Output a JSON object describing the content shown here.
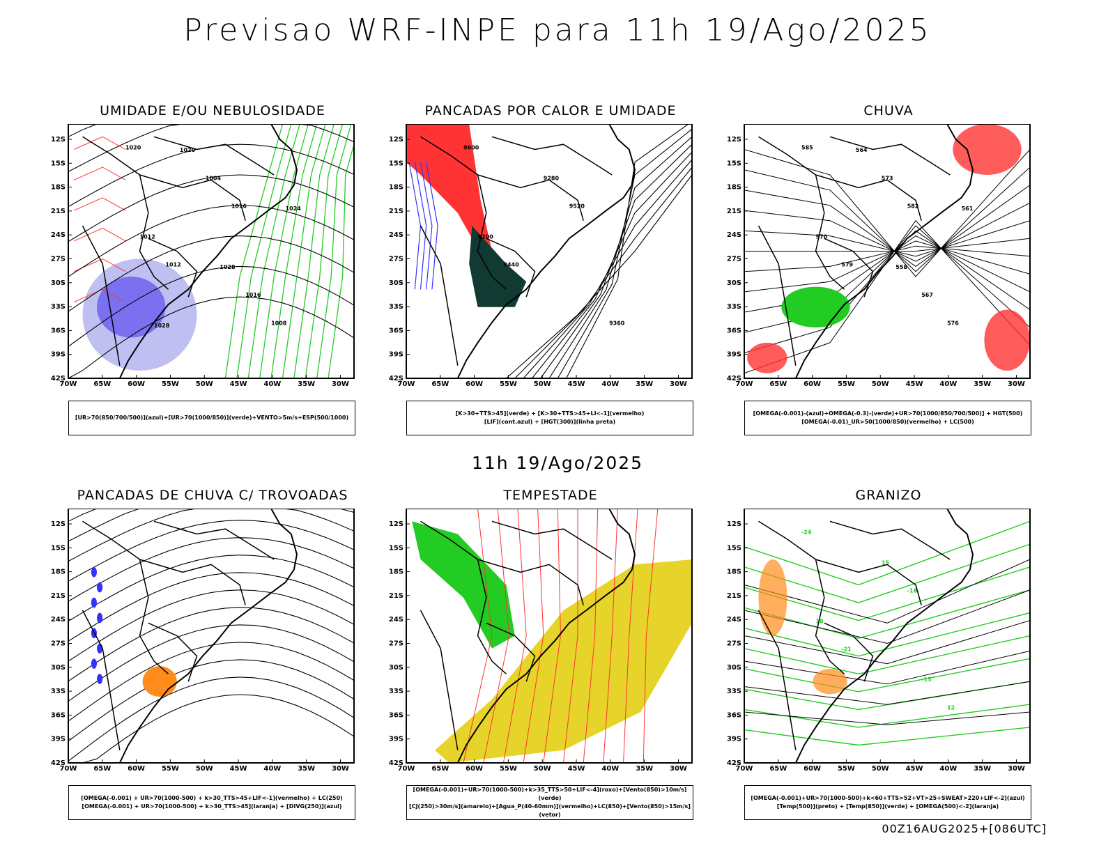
{
  "title": "Previsao WRF-INPE  para 11h 19/Ago/2025",
  "mid_label": "11h 19/Ago/2025",
  "footer": "00Z16AUG2025+[086UTC]",
  "axes": {
    "lat_ticks": [
      "12S",
      "15S",
      "18S",
      "21S",
      "24S",
      "27S",
      "30S",
      "33S",
      "36S",
      "39S",
      "42S"
    ],
    "lon_ticks": [
      "70W",
      "65W",
      "60W",
      "55W",
      "50W",
      "45W",
      "40W",
      "35W",
      "30W"
    ]
  },
  "colors": {
    "blue": "#3333ff",
    "green": "#22cc22",
    "red": "#ff3333",
    "orange": "#ff8c1a",
    "yellow": "#e6d42a",
    "darkgreen": "#113a33",
    "lightblue": "#b8b8f0",
    "violet": "#6a5ef0"
  },
  "panels": [
    {
      "title": "UMIDADE E/OU NEBULOSIDADE",
      "legend": [
        "[UR>70(850/700/500)](azul)+[UR>70(1000/850)](verde)+VENTO>5m/s+ESP(500/1000)"
      ],
      "contour_labels": [
        "1020",
        "1016",
        "1012",
        "1008",
        "1004",
        "1012",
        "1016",
        "1020",
        "1024",
        "1028",
        "1028"
      ]
    },
    {
      "title": "PANCADAS POR CALOR E UMIDADE",
      "legend": [
        "[K>30+TTS>45](verde) + [K>30+TTS>45+LI<-1](vermelho)",
        "[LIF](cont.azul) + [HGT(300)](linha preta)"
      ],
      "contour_labels": [
        "9600",
        "9520",
        "9440",
        "9360",
        "9280",
        "9200"
      ]
    },
    {
      "title": "CHUVA",
      "legend": [
        "[OMEGA(-0.001)-(azul)+OMEGA(-0.3)-(verde)+UR>70(1000/850/700/500)] + HGT(500)",
        "[OMEGA(-0.01)_UR>50(1000/850)(vermelho) + LC(500)"
      ],
      "contour_labels": [
        "585",
        "582",
        "579",
        "576",
        "573",
        "570",
        "567",
        "564",
        "561",
        "558"
      ]
    },
    {
      "title": "PANCADAS DE CHUVA C/ TROVOADAS",
      "legend": [
        "[OMEGA(-0.001) + UR>70(1000-500) + k>30_TTS>45+LIF<-1](vermelho) + LC(250)",
        "[OMEGA(-0.001) + UR>70(1000-500) + k>30_TTS>45](laranja) + [DIVG(250)](azul)"
      ]
    },
    {
      "title": "TEMPESTADE",
      "legend": [
        "[OMEGA(-0.001)+UR>70(1000-500)+k>35_TTS>50+LIF<-4](roxo)+[Vento(850)>10m/s](verde)",
        "[CJ(250)>30m/s](amarelo)+[Agua_P(40-60mm)](vermelho)+LC(850)+[Vento(850)>15m/s](vetor)"
      ]
    },
    {
      "title": "GRANIZO",
      "legend": [
        "[OMEGA(-0.001)+UR>70(1000-500)+k<60+TTS>52+VT>25+SWEAT>220+LIF<-2](azul)",
        "[Temp(500)](preto) + [Temp(850)](verde) + [OMEGA(500)<-2](laranja)"
      ],
      "contour_labels": [
        "-24",
        "-18",
        "-21",
        "12",
        "15",
        "18",
        "-15"
      ]
    }
  ]
}
